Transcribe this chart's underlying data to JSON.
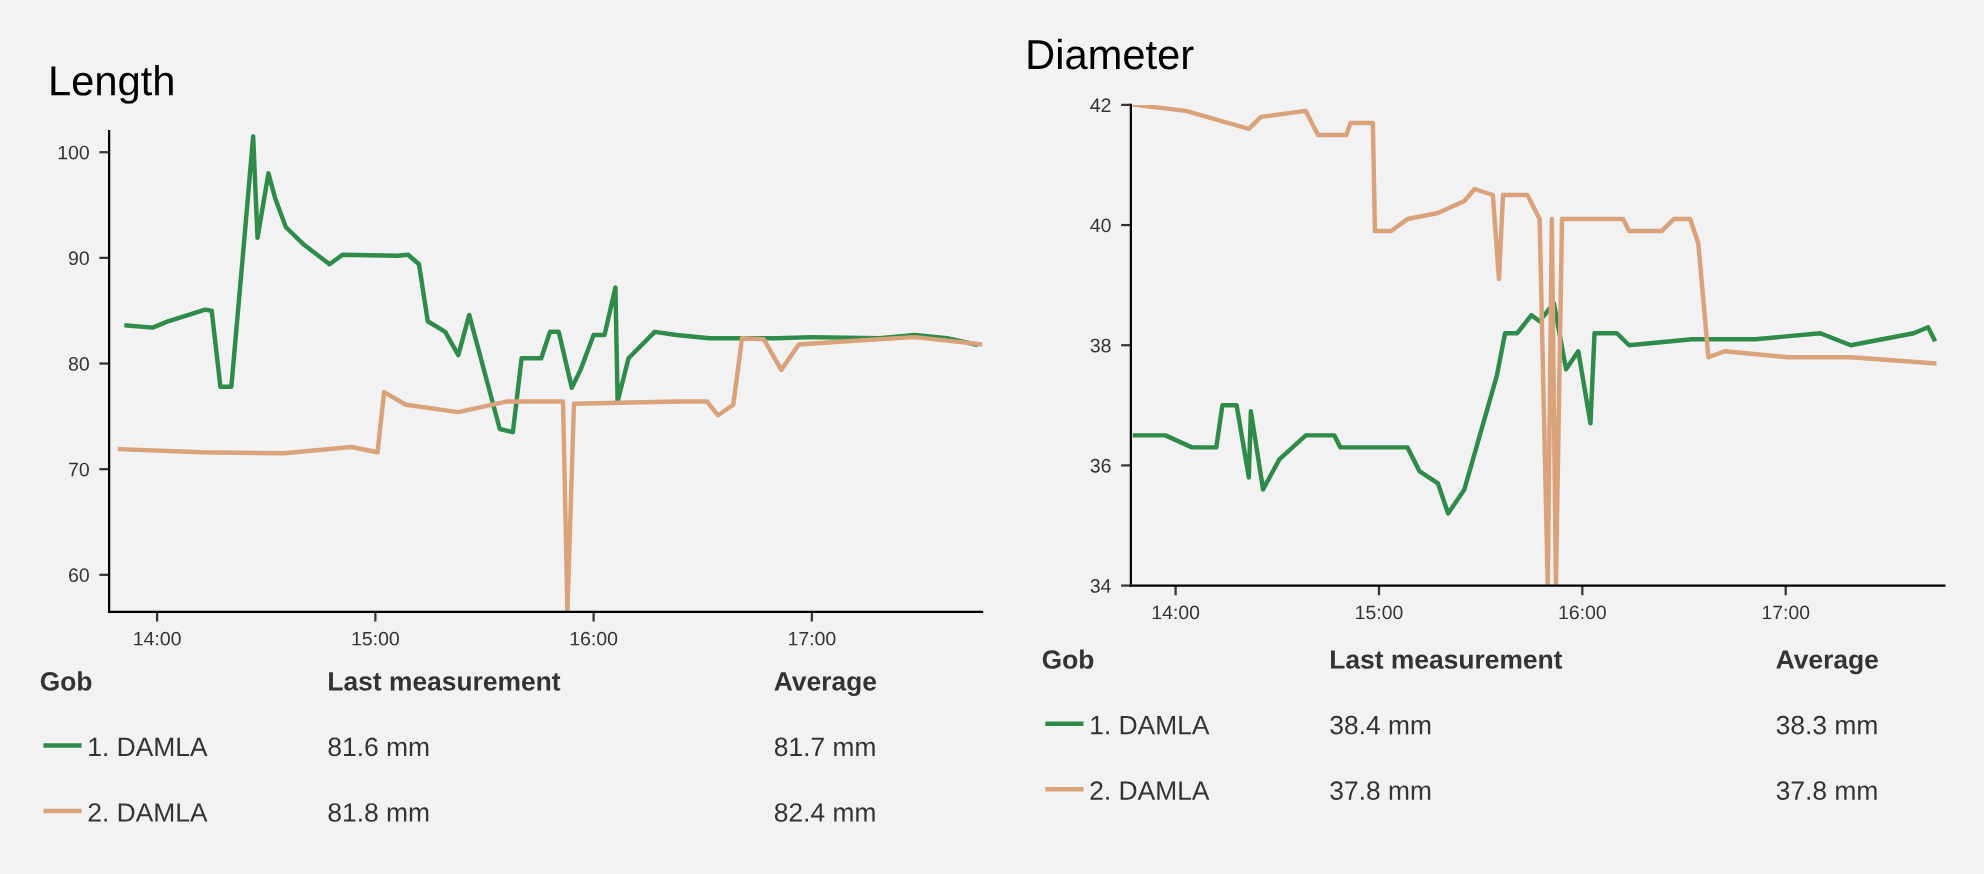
{
  "chart_data": [
    {
      "type": "line",
      "title": "Length",
      "xlim": [
        13.78,
        17.78
      ],
      "ylim": [
        56.5,
        102
      ],
      "xticks": [
        {
          "value": 14,
          "label": "14:00"
        },
        {
          "value": 15,
          "label": "15:00"
        },
        {
          "value": 16,
          "label": "16:00"
        },
        {
          "value": 17,
          "label": "17:00"
        }
      ],
      "yticks": [
        60,
        70,
        80,
        90,
        100
      ],
      "grid": false,
      "legend": "bottom",
      "marker": "none",
      "line_style": "solid",
      "annotations": [
        "Gob",
        "Last measurement",
        "Average",
        "81.6 mm",
        "81.7 mm",
        "81.8 mm",
        "82.4 mm"
      ],
      "series": [
        {
          "name": "1. DAMLA",
          "color": "#2e8b4a",
          "x": [
            13.86,
            13.98,
            14.05,
            14.22,
            14.25,
            14.29,
            14.34,
            14.4,
            14.44,
            14.46,
            14.51,
            14.54,
            14.59,
            14.67,
            14.79,
            14.85,
            15.1,
            15.15,
            15.2,
            15.24,
            15.32,
            15.38,
            15.43,
            15.57,
            15.63,
            15.67,
            15.76,
            15.8,
            15.84,
            15.9,
            15.94,
            16.0,
            16.05,
            16.1,
            16.11,
            16.16,
            16.28,
            16.38,
            16.53,
            16.84,
            17.0,
            17.31,
            17.47,
            17.62,
            17.75
          ],
          "values": [
            83.6,
            83.4,
            84.0,
            85.1,
            85.0,
            77.8,
            77.8,
            91.9,
            101.5,
            91.9,
            98.0,
            95.7,
            92.9,
            91.3,
            89.4,
            90.3,
            90.2,
            90.3,
            89.4,
            84.0,
            83.0,
            80.8,
            84.6,
            73.8,
            73.5,
            80.5,
            80.5,
            83.0,
            83.0,
            77.7,
            79.4,
            82.7,
            82.7,
            87.2,
            76.4,
            80.5,
            83.0,
            82.7,
            82.4,
            82.4,
            82.5,
            82.4,
            82.7,
            82.4,
            81.8
          ]
        },
        {
          "name": "2. DAMLA",
          "color": "#d9a27a",
          "x": [
            13.83,
            14.2,
            14.58,
            14.89,
            15.01,
            15.04,
            15.14,
            15.38,
            15.6,
            15.86,
            15.88,
            15.91,
            16.38,
            16.52,
            16.57,
            16.64,
            16.68,
            16.78,
            16.86,
            16.94,
            17.16,
            17.47,
            17.78
          ],
          "values": [
            71.9,
            71.6,
            71.5,
            72.1,
            71.6,
            77.3,
            76.1,
            75.4,
            76.4,
            76.4,
            56.6,
            76.2,
            76.4,
            76.4,
            75.1,
            76.1,
            82.4,
            82.3,
            79.4,
            81.8,
            82.1,
            82.5,
            81.8
          ]
        }
      ]
    },
    {
      "type": "line",
      "title": "Diameter",
      "xlim": [
        13.78,
        17.78
      ],
      "ylim": [
        34,
        42
      ],
      "xticks": [
        {
          "value": 14,
          "label": "14:00"
        },
        {
          "value": 15,
          "label": "15:00"
        },
        {
          "value": 16,
          "label": "16:00"
        },
        {
          "value": 17,
          "label": "17:00"
        }
      ],
      "yticks": [
        34,
        36,
        38,
        40,
        42
      ],
      "grid": false,
      "legend": "bottom",
      "marker": "none",
      "line_style": "solid",
      "annotations": [
        "Gob",
        "Last measurement",
        "Average",
        "38.4 mm",
        "38.3 mm",
        "37.8 mm",
        "37.8 mm"
      ],
      "series": [
        {
          "name": "1. DAMLA",
          "color": "#2e8b4a",
          "x": [
            13.8,
            13.95,
            14.08,
            14.2,
            14.23,
            14.3,
            14.36,
            14.37,
            14.43,
            14.51,
            14.64,
            14.78,
            14.81,
            15.14,
            15.2,
            15.29,
            15.34,
            15.42,
            15.58,
            15.62,
            15.68,
            15.75,
            15.79,
            15.86,
            15.92,
            15.98,
            16.04,
            16.06,
            16.17,
            16.23,
            16.54,
            16.85,
            17.17,
            17.32,
            17.63,
            17.7,
            17.73
          ],
          "values": [
            36.5,
            36.5,
            36.3,
            36.3,
            37.0,
            37.0,
            35.8,
            36.9,
            35.6,
            36.1,
            36.5,
            36.5,
            36.3,
            36.3,
            35.9,
            35.7,
            35.2,
            35.6,
            37.5,
            38.2,
            38.2,
            38.5,
            38.4,
            38.7,
            37.6,
            37.9,
            36.7,
            38.2,
            38.2,
            38.0,
            38.1,
            38.1,
            38.2,
            38.0,
            38.2,
            38.3,
            38.1
          ]
        },
        {
          "name": "2. DAMLA",
          "color": "#d9a27a",
          "x": [
            13.8,
            14.05,
            14.36,
            14.42,
            14.64,
            14.7,
            14.84,
            14.86,
            14.97,
            14.98,
            15.06,
            15.14,
            15.29,
            15.42,
            15.47,
            15.56,
            15.59,
            15.61,
            15.73,
            15.79,
            15.83,
            15.85,
            15.87,
            15.9,
            16.2,
            16.23,
            16.39,
            16.45,
            16.53,
            16.57,
            16.62,
            16.7,
            17.01,
            17.32,
            17.73
          ],
          "values": [
            42.0,
            41.9,
            41.6,
            41.8,
            41.9,
            41.5,
            41.5,
            41.7,
            41.7,
            39.9,
            39.9,
            40.1,
            40.2,
            40.4,
            40.6,
            40.5,
            39.1,
            40.5,
            40.5,
            40.1,
            34.0,
            40.1,
            34.0,
            40.1,
            40.1,
            39.9,
            39.9,
            40.1,
            40.1,
            39.7,
            37.8,
            37.9,
            37.8,
            37.8,
            37.7
          ]
        }
      ]
    }
  ]
}
